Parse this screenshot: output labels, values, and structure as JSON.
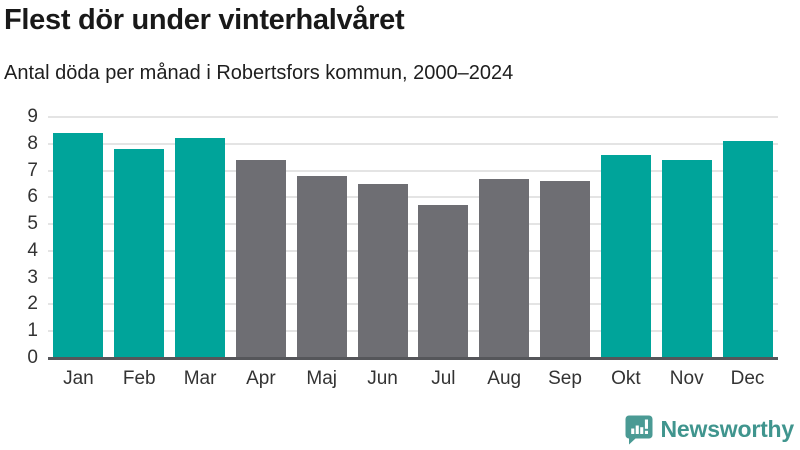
{
  "header": {
    "title": "Flest dör under vinterhalvåret",
    "subtitle": "Antal döda per månad i Robertsfors kommun, 2000–2024"
  },
  "chart_data": {
    "type": "bar",
    "title": "Flest dör under vinterhalvåret",
    "subtitle": "Antal döda per månad i Robertsfors kommun, 2000–2024",
    "categories": [
      "Jan",
      "Feb",
      "Mar",
      "Apr",
      "Maj",
      "Jun",
      "Jul",
      "Aug",
      "Sep",
      "Okt",
      "Nov",
      "Dec"
    ],
    "values": [
      8.4,
      7.8,
      8.2,
      7.4,
      6.8,
      6.5,
      5.7,
      6.7,
      6.6,
      7.6,
      7.4,
      8.1
    ],
    "groups": [
      "winter",
      "winter",
      "winter",
      "summer",
      "summer",
      "summer",
      "summer",
      "summer",
      "summer",
      "winter",
      "winter",
      "winter"
    ],
    "palette": {
      "winter": "#00a49a",
      "summer": "#6e6e73"
    },
    "xlabel": "",
    "ylabel": "",
    "ylim": [
      0,
      9
    ],
    "yticks": [
      0,
      1,
      2,
      3,
      4,
      5,
      6,
      7,
      8,
      9
    ],
    "grid": "horizontal",
    "legend": "none",
    "colors": {
      "gridline": "#e4e4e4",
      "axis_line": "#55565a",
      "tick_label": "#333333"
    }
  },
  "footer": {
    "brand": "Newsworthy",
    "logo_icon": "bar-chart-speech-bubble-icon",
    "brand_color": "#40958e",
    "logo_color": "#4a9a94"
  }
}
